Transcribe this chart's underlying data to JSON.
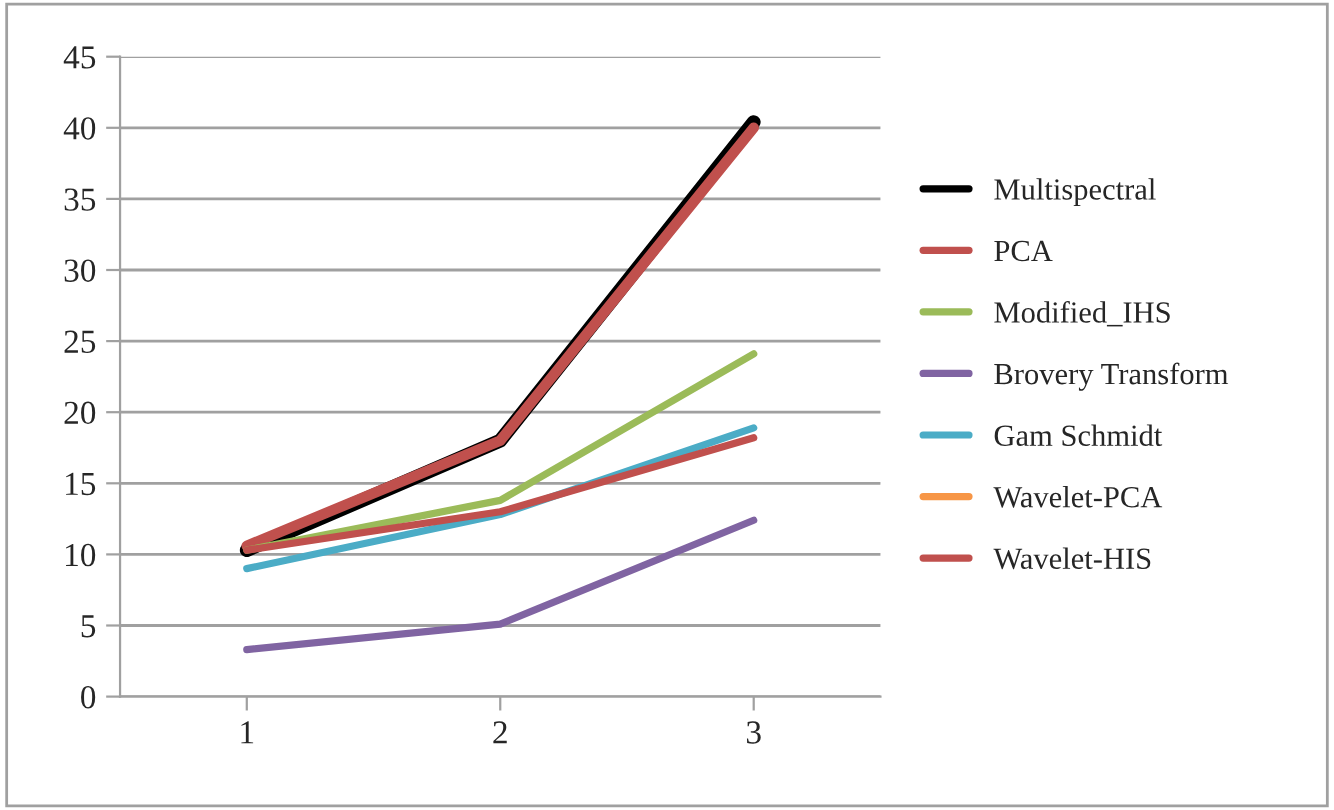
{
  "chart_data": {
    "type": "line",
    "categories": [
      "1",
      "2",
      "3"
    ],
    "series": [
      {
        "name": "Multispectral",
        "color": "#000000",
        "values": [
          10.3,
          18,
          40.4
        ]
      },
      {
        "name": "PCA",
        "color": "#c0504d",
        "values": [
          10.6,
          18,
          40
        ]
      },
      {
        "name": "Modified_IHS",
        "color": "#9bbb59",
        "values": [
          10.3,
          13.8,
          24.1
        ]
      },
      {
        "name": "Brovery Transform",
        "color": "#8064a2",
        "values": [
          3.3,
          5.1,
          12.4
        ]
      },
      {
        "name": "Gam Schmidt",
        "color": "#4bacc6",
        "values": [
          9,
          12.8,
          18.9
        ]
      },
      {
        "name": "Wavelet-PCA",
        "color": "#f79646",
        "values": [
          null,
          null,
          null
        ]
      },
      {
        "name": "Wavelet-HIS",
        "color": "#c0504d",
        "values": [
          10.3,
          13,
          18.2
        ]
      }
    ],
    "ylim": [
      0,
      45
    ],
    "yticks": [
      0,
      5,
      10,
      15,
      20,
      25,
      30,
      35,
      40,
      45
    ],
    "grid": "y",
    "legend": "right",
    "marker": "none",
    "line_style": "solid"
  }
}
